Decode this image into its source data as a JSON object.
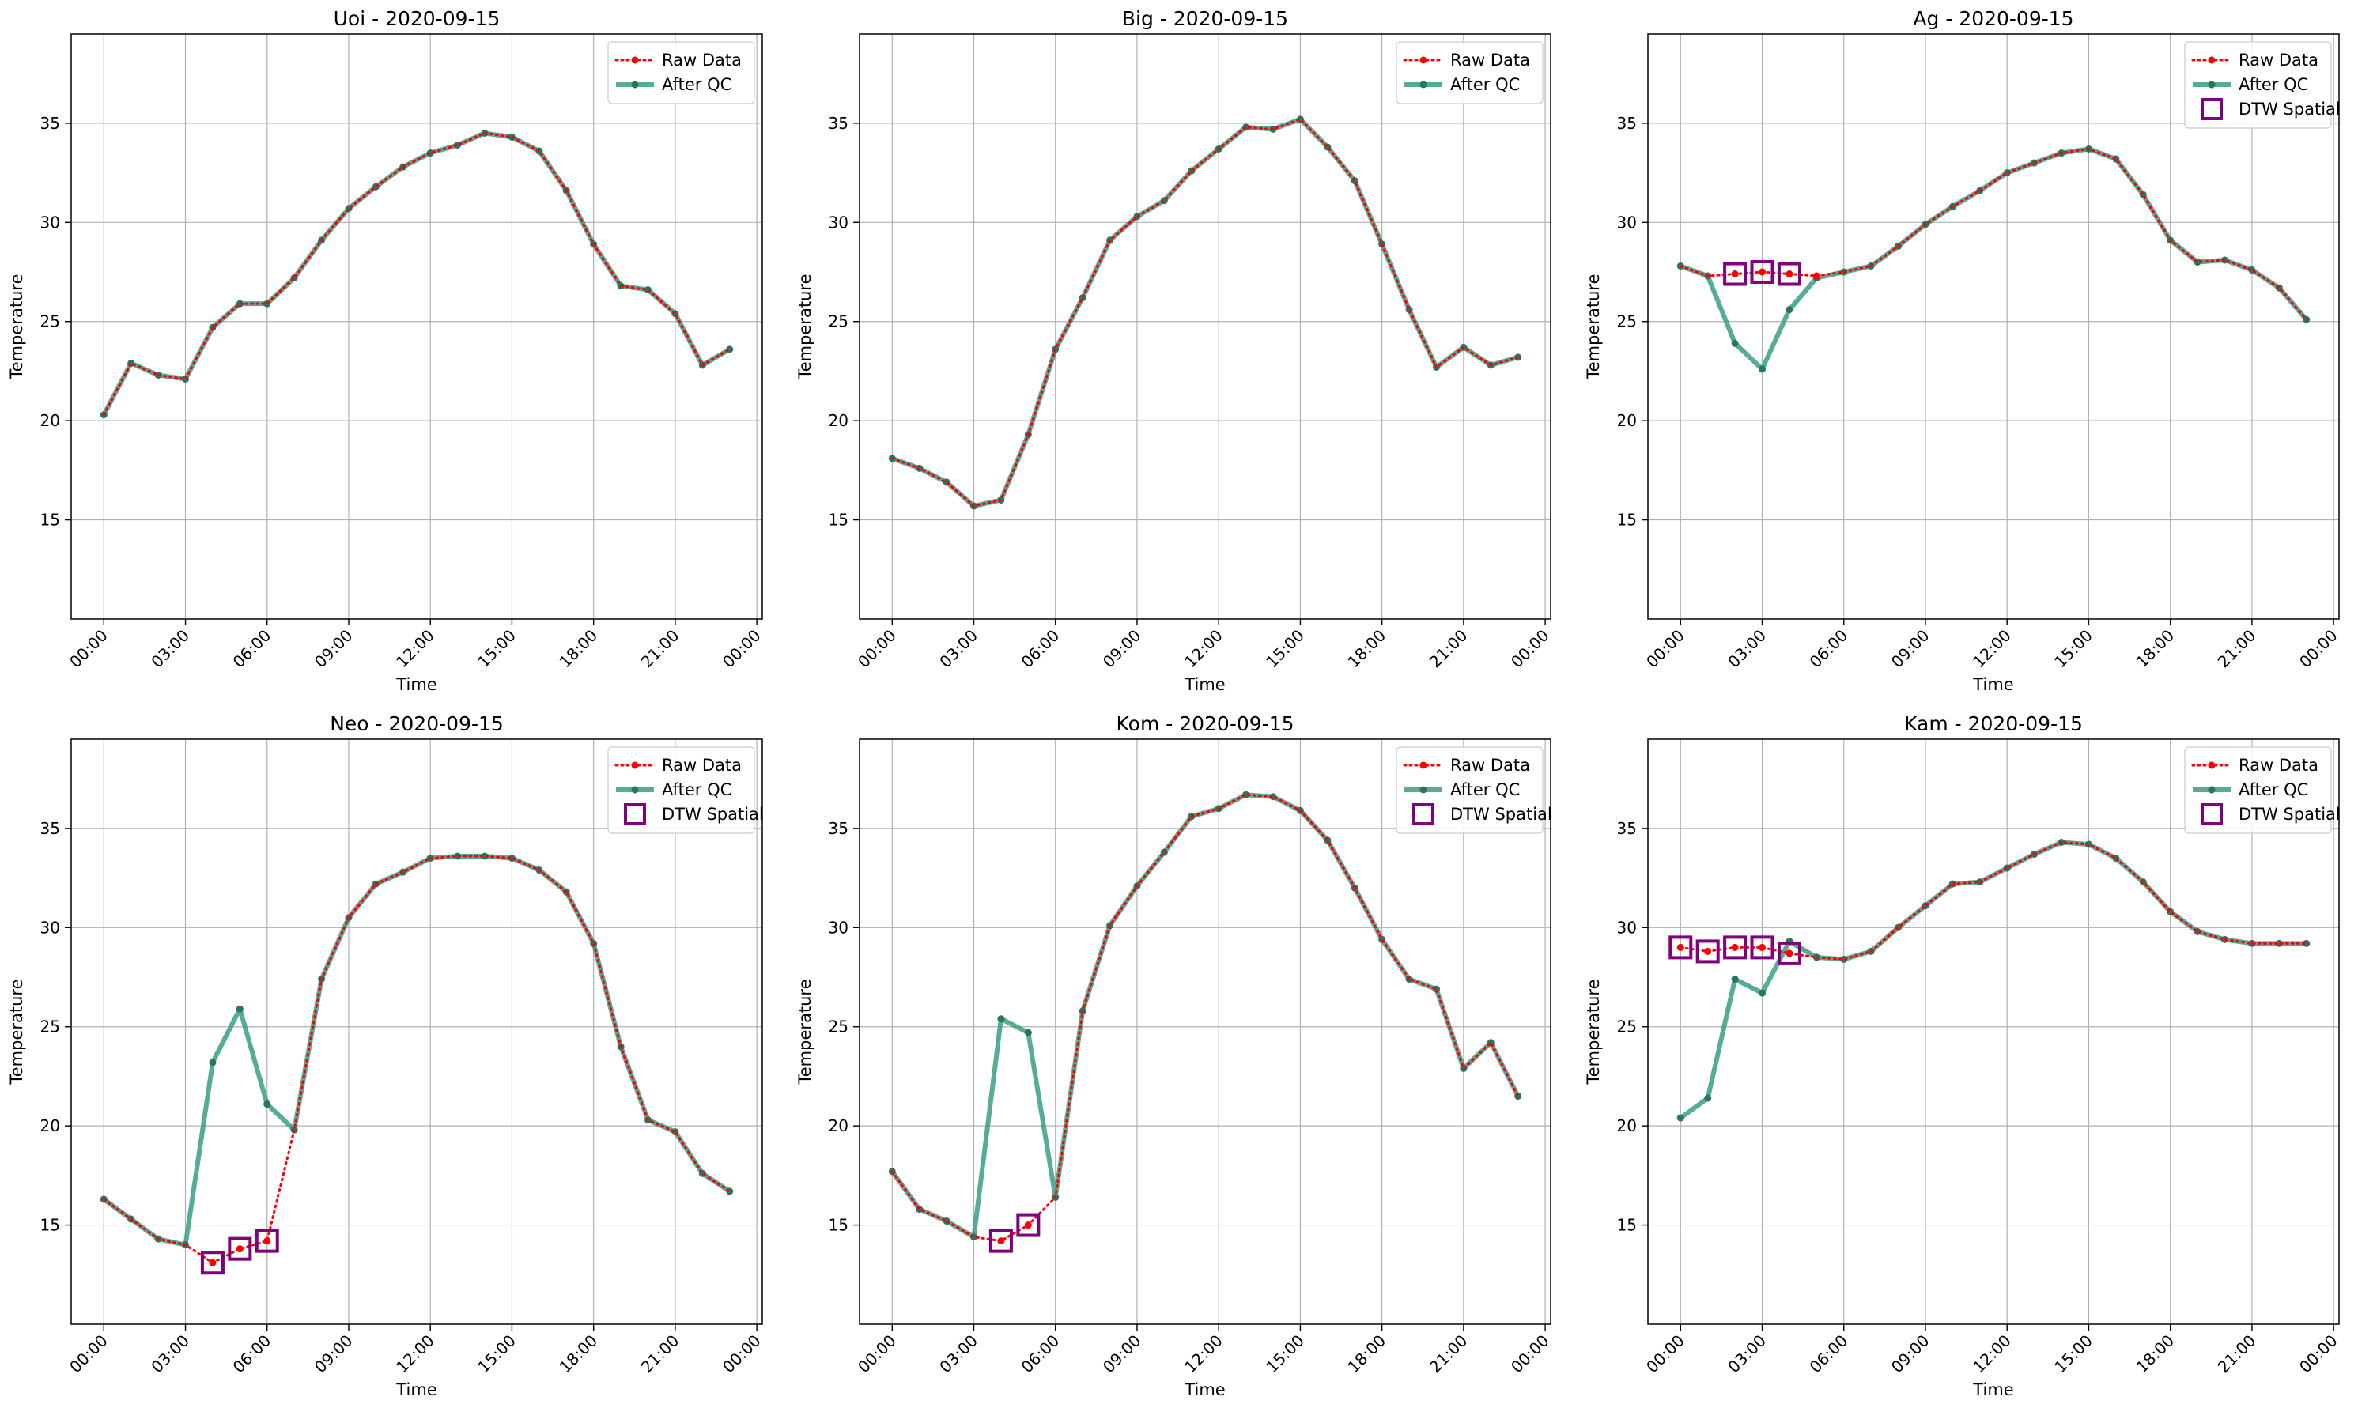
{
  "figure": {
    "type": "line",
    "date": "2020-09-15"
  },
  "legend_labels": {
    "raw": "Raw Data",
    "qc": "After QC",
    "dtw": "DTW Spatial"
  },
  "colors": {
    "raw": "#ff0000",
    "qc": "#3a9e86",
    "qc_marker": "#2a7560",
    "dtw": "#800080",
    "grid": "#b0b0b0"
  },
  "chart_data": [
    {
      "type": "line",
      "title": "Uoi - 2020-09-15",
      "xlabel": "Time",
      "ylabel": "Temperature",
      "x_ticks": [
        "00:00",
        "03:00",
        "06:00",
        "09:00",
        "12:00",
        "15:00",
        "18:00",
        "21:00",
        "00:00"
      ],
      "y_ticks": [
        15,
        20,
        25,
        30,
        35
      ],
      "ylim": [
        10,
        39.5
      ],
      "xlim": [
        -1.2,
        24.2
      ],
      "grid": true,
      "legend": "top-right",
      "x": [
        0,
        1,
        2,
        3,
        4,
        5,
        6,
        7,
        8,
        9,
        10,
        11,
        12,
        13,
        14,
        15,
        16,
        17,
        18,
        19,
        20,
        21,
        22,
        23
      ],
      "series": [
        {
          "name": "Raw Data",
          "values": [
            20.3,
            22.9,
            22.3,
            22.1,
            24.7,
            25.9,
            25.9,
            27.2,
            29.1,
            30.7,
            31.8,
            32.8,
            33.5,
            33.9,
            34.5,
            34.3,
            33.6,
            31.6,
            28.9,
            26.8,
            26.6,
            25.4,
            22.8,
            23.6
          ]
        },
        {
          "name": "After QC",
          "values": [
            20.3,
            22.9,
            22.3,
            22.1,
            24.7,
            25.9,
            25.9,
            27.2,
            29.1,
            30.7,
            31.8,
            32.8,
            33.5,
            33.9,
            34.5,
            34.3,
            33.6,
            31.6,
            28.9,
            26.8,
            26.6,
            25.4,
            22.8,
            23.6
          ]
        }
      ]
    },
    {
      "type": "line",
      "title": "Big - 2020-09-15",
      "xlabel": "Time",
      "ylabel": "Temperature",
      "x_ticks": [
        "00:00",
        "03:00",
        "06:00",
        "09:00",
        "12:00",
        "15:00",
        "18:00",
        "21:00",
        "00:00"
      ],
      "y_ticks": [
        15,
        20,
        25,
        30,
        35
      ],
      "ylim": [
        10,
        39.5
      ],
      "xlim": [
        -1.2,
        24.2
      ],
      "grid": true,
      "legend": "top-right",
      "x": [
        0,
        1,
        2,
        3,
        4,
        5,
        6,
        7,
        8,
        9,
        10,
        11,
        12,
        13,
        14,
        15,
        16,
        17,
        18,
        19,
        20,
        21,
        22,
        23
      ],
      "series": [
        {
          "name": "Raw Data",
          "values": [
            18.1,
            17.6,
            16.9,
            15.7,
            16.0,
            19.3,
            23.6,
            26.2,
            29.1,
            30.3,
            31.1,
            32.6,
            33.7,
            34.8,
            34.7,
            35.2,
            33.8,
            32.1,
            28.9,
            25.6,
            22.7,
            23.7,
            22.8,
            23.2
          ]
        },
        {
          "name": "After QC",
          "values": [
            18.1,
            17.6,
            16.9,
            15.7,
            16.0,
            19.3,
            23.6,
            26.2,
            29.1,
            30.3,
            31.1,
            32.6,
            33.7,
            34.8,
            34.7,
            35.2,
            33.8,
            32.1,
            28.9,
            25.6,
            22.7,
            23.7,
            22.8,
            23.2
          ]
        }
      ]
    },
    {
      "type": "line",
      "title": "Ag - 2020-09-15",
      "xlabel": "Time",
      "ylabel": "Temperature",
      "x_ticks": [
        "00:00",
        "03:00",
        "06:00",
        "09:00",
        "12:00",
        "15:00",
        "18:00",
        "21:00",
        "00:00"
      ],
      "y_ticks": [
        15,
        20,
        25,
        30,
        35
      ],
      "ylim": [
        10,
        39.5
      ],
      "xlim": [
        -1.2,
        24.2
      ],
      "grid": true,
      "legend": "top-right",
      "x": [
        0,
        1,
        2,
        3,
        4,
        5,
        6,
        7,
        8,
        9,
        10,
        11,
        12,
        13,
        14,
        15,
        16,
        17,
        18,
        19,
        20,
        21,
        22,
        23
      ],
      "series": [
        {
          "name": "Raw Data",
          "values": [
            27.8,
            27.3,
            27.4,
            27.5,
            27.4,
            27.3,
            27.5,
            27.8,
            28.8,
            29.9,
            30.8,
            31.6,
            32.5,
            33.0,
            33.5,
            33.7,
            33.2,
            31.4,
            29.1,
            28.0,
            28.1,
            27.6,
            26.7,
            25.1
          ]
        },
        {
          "name": "After QC",
          "values": [
            27.8,
            27.3,
            23.9,
            22.6,
            25.6,
            27.2,
            27.5,
            27.8,
            28.8,
            29.9,
            30.8,
            31.6,
            32.5,
            33.0,
            33.5,
            33.7,
            33.2,
            31.4,
            29.1,
            28.0,
            28.1,
            27.6,
            26.7,
            25.1
          ]
        },
        {
          "name": "DTW Spatial",
          "x": [
            2,
            3,
            4
          ],
          "values": [
            27.4,
            27.5,
            27.4
          ]
        }
      ]
    },
    {
      "type": "line",
      "title": "Neo - 2020-09-15",
      "xlabel": "Time",
      "ylabel": "Temperature",
      "x_ticks": [
        "00:00",
        "03:00",
        "06:00",
        "09:00",
        "12:00",
        "15:00",
        "18:00",
        "21:00",
        "00:00"
      ],
      "y_ticks": [
        15,
        20,
        25,
        30,
        35
      ],
      "ylim": [
        10,
        39.5
      ],
      "xlim": [
        -1.2,
        24.2
      ],
      "grid": true,
      "legend": "top-right",
      "x": [
        0,
        1,
        2,
        3,
        4,
        5,
        6,
        7,
        8,
        9,
        10,
        11,
        12,
        13,
        14,
        15,
        16,
        17,
        18,
        19,
        20,
        21,
        22,
        23
      ],
      "series": [
        {
          "name": "Raw Data",
          "values": [
            16.3,
            15.3,
            14.3,
            14.0,
            13.1,
            13.8,
            14.2,
            19.8,
            27.4,
            30.5,
            32.2,
            32.8,
            33.5,
            33.6,
            33.6,
            33.5,
            32.9,
            31.8,
            29.2,
            24.0,
            20.3,
            19.7,
            17.6,
            16.7
          ]
        },
        {
          "name": "After QC",
          "values": [
            16.3,
            15.3,
            14.3,
            14.0,
            23.2,
            25.9,
            21.1,
            19.8,
            27.4,
            30.5,
            32.2,
            32.8,
            33.5,
            33.6,
            33.6,
            33.5,
            32.9,
            31.8,
            29.2,
            24.0,
            20.3,
            19.7,
            17.6,
            16.7
          ]
        },
        {
          "name": "DTW Spatial",
          "x": [
            4,
            5,
            6
          ],
          "values": [
            13.1,
            13.8,
            14.2
          ]
        }
      ]
    },
    {
      "type": "line",
      "title": "Kom - 2020-09-15",
      "xlabel": "Time",
      "ylabel": "Temperature",
      "x_ticks": [
        "00:00",
        "03:00",
        "06:00",
        "09:00",
        "12:00",
        "15:00",
        "18:00",
        "21:00",
        "00:00"
      ],
      "y_ticks": [
        15,
        20,
        25,
        30,
        35
      ],
      "ylim": [
        10,
        39.5
      ],
      "xlim": [
        -1.2,
        24.2
      ],
      "grid": true,
      "legend": "top-right",
      "x": [
        0,
        1,
        2,
        3,
        4,
        5,
        6,
        7,
        8,
        9,
        10,
        11,
        12,
        13,
        14,
        15,
        16,
        17,
        18,
        19,
        20,
        21,
        22,
        23
      ],
      "series": [
        {
          "name": "Raw Data",
          "values": [
            17.7,
            15.8,
            15.2,
            14.4,
            14.2,
            15.0,
            16.4,
            25.8,
            30.1,
            32.1,
            33.8,
            35.6,
            36.0,
            36.7,
            36.6,
            35.9,
            34.4,
            32.0,
            29.4,
            27.4,
            26.9,
            22.9,
            24.2,
            21.5
          ]
        },
        {
          "name": "After QC",
          "values": [
            17.7,
            15.8,
            15.2,
            14.4,
            25.4,
            24.7,
            16.4,
            25.8,
            30.1,
            32.1,
            33.8,
            35.6,
            36.0,
            36.7,
            36.6,
            35.9,
            34.4,
            32.0,
            29.4,
            27.4,
            26.9,
            22.9,
            24.2,
            21.5
          ]
        },
        {
          "name": "DTW Spatial",
          "x": [
            4,
            5
          ],
          "values": [
            14.2,
            15.0
          ]
        }
      ]
    },
    {
      "type": "line",
      "title": "Kam - 2020-09-15",
      "xlabel": "Time",
      "ylabel": "Temperature",
      "x_ticks": [
        "00:00",
        "03:00",
        "06:00",
        "09:00",
        "12:00",
        "15:00",
        "18:00",
        "21:00",
        "00:00"
      ],
      "y_ticks": [
        15,
        20,
        25,
        30,
        35
      ],
      "ylim": [
        10,
        39.5
      ],
      "xlim": [
        -1.2,
        24.2
      ],
      "grid": true,
      "legend": "top-right",
      "x": [
        0,
        1,
        2,
        3,
        4,
        5,
        6,
        7,
        8,
        9,
        10,
        11,
        12,
        13,
        14,
        15,
        16,
        17,
        18,
        19,
        20,
        21,
        22,
        23
      ],
      "series": [
        {
          "name": "Raw Data",
          "values": [
            29.0,
            28.8,
            29.0,
            29.0,
            28.7,
            28.5,
            28.4,
            28.8,
            30.0,
            31.1,
            32.2,
            32.3,
            33.0,
            33.7,
            34.3,
            34.2,
            33.5,
            32.3,
            30.8,
            29.8,
            29.4,
            29.2,
            29.2,
            29.2
          ]
        },
        {
          "name": "After QC",
          "values": [
            20.4,
            21.4,
            27.4,
            26.7,
            29.3,
            28.5,
            28.4,
            28.8,
            30.0,
            31.1,
            32.2,
            32.3,
            33.0,
            33.7,
            34.3,
            34.2,
            33.5,
            32.3,
            30.8,
            29.8,
            29.4,
            29.2,
            29.2,
            29.2
          ]
        },
        {
          "name": "DTW Spatial",
          "x": [
            0,
            1,
            2,
            3,
            4
          ],
          "values": [
            29.0,
            28.8,
            29.0,
            29.0,
            28.7
          ]
        }
      ]
    }
  ]
}
